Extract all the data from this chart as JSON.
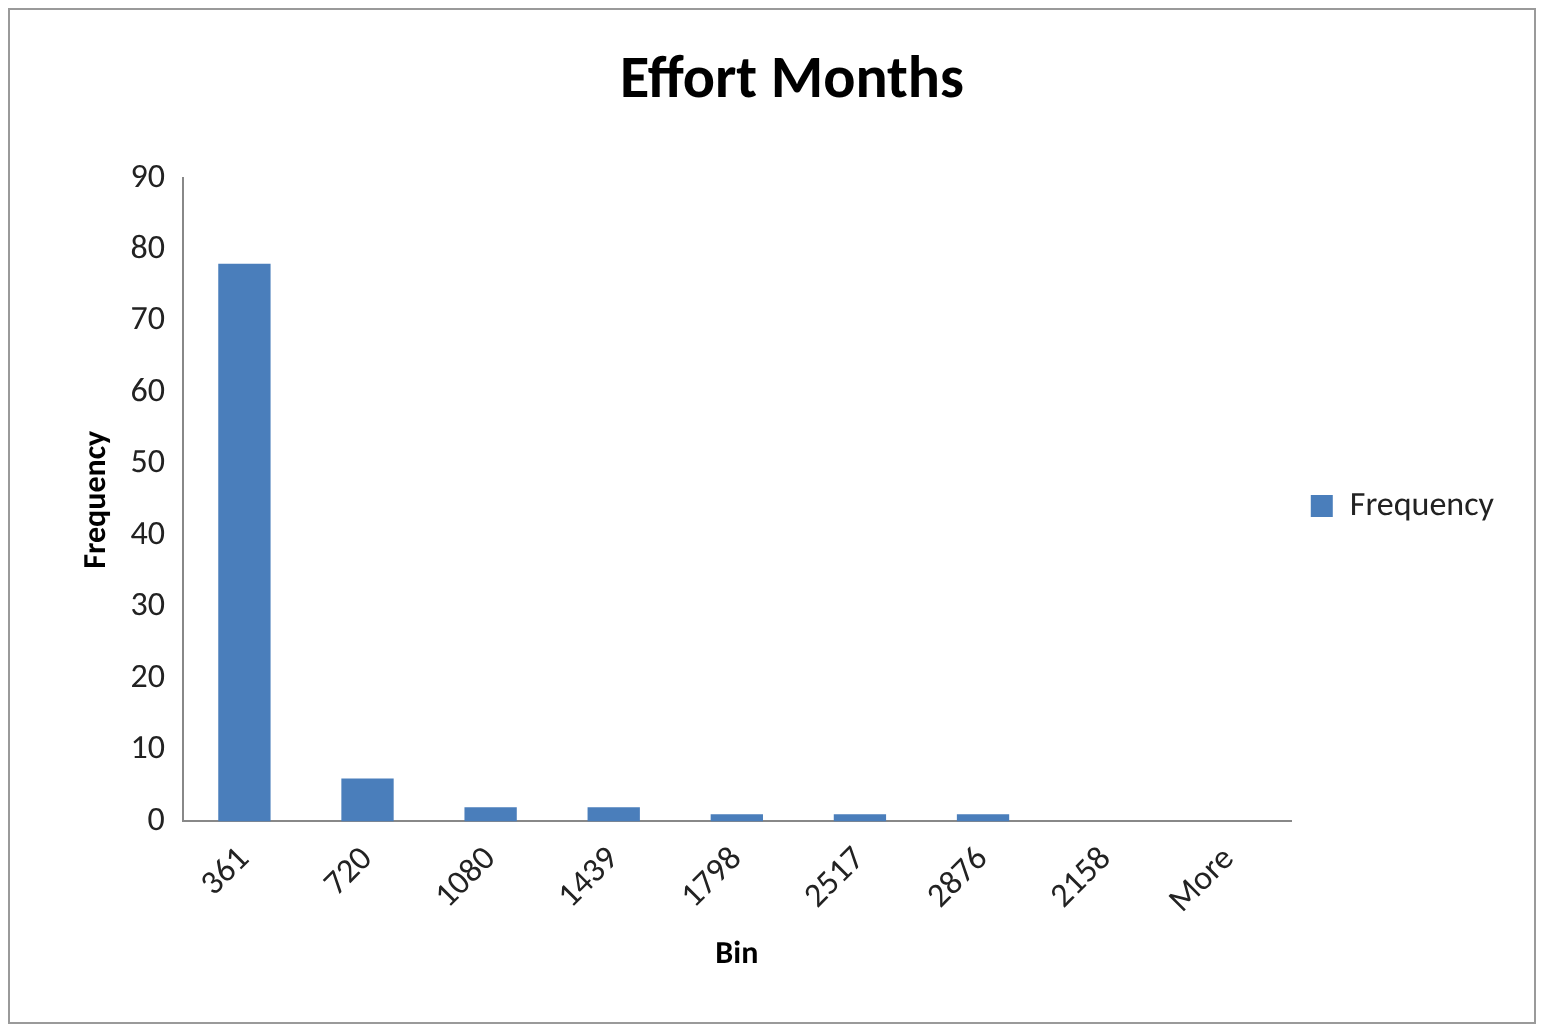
{
  "chart_data": {
    "type": "bar",
    "title": "Effort Months",
    "xlabel": "Bin",
    "ylabel": "Frequency",
    "categories": [
      "361",
      "720",
      "1080",
      "1439",
      "1798",
      "2517",
      "2876",
      "2158",
      "More"
    ],
    "series": [
      {
        "name": "Frequency",
        "color": "#4a7ebb",
        "values": [
          78,
          6,
          2,
          2,
          1,
          1,
          1,
          0,
          0
        ]
      }
    ],
    "ylim": [
      0,
      90
    ],
    "yticks": [
      0,
      10,
      20,
      30,
      40,
      50,
      60,
      70,
      80,
      90
    ],
    "grid": false,
    "legend": "right"
  }
}
